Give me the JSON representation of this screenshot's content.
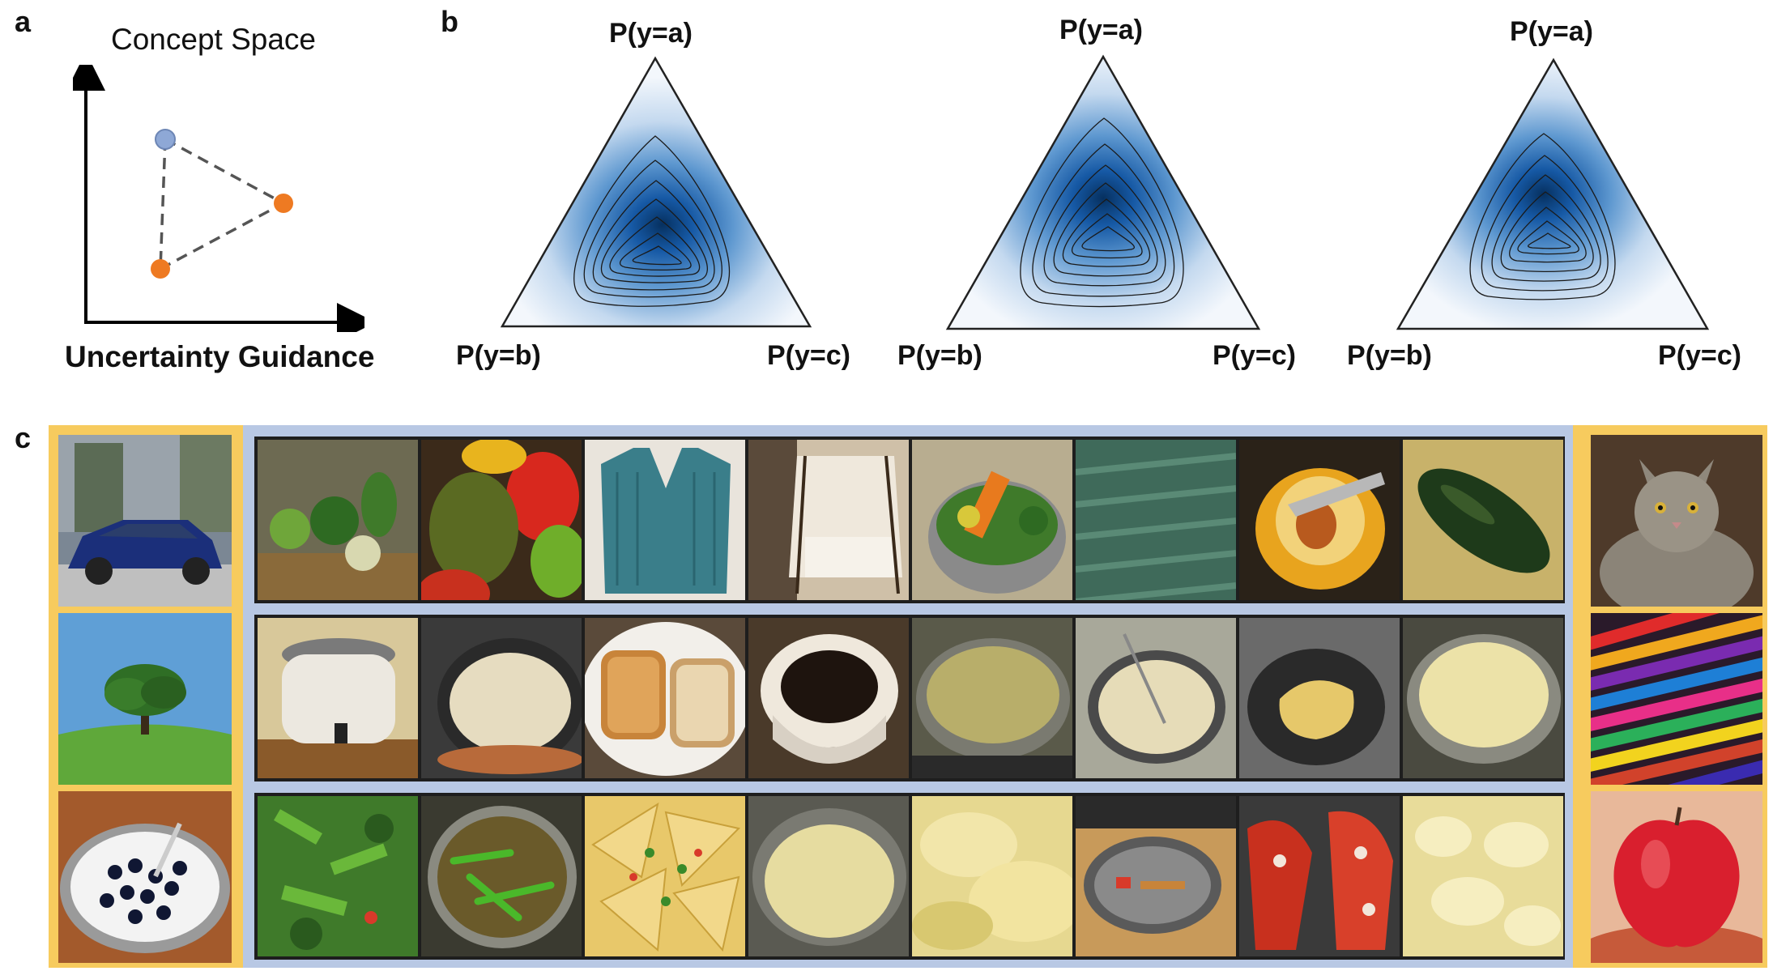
{
  "panel_a": {
    "letter": "a",
    "title": "Concept Space",
    "x_axis_label": "Uncertainty Guidance"
  },
  "panel_b": {
    "letter": "b",
    "simplices": [
      {
        "top": "P(y=a)",
        "left": "P(y=b)",
        "right": "P(y=c)"
      },
      {
        "top": "P(y=a)",
        "left": "P(y=b)",
        "right": "P(y=c)"
      },
      {
        "top": "P(y=a)",
        "left": "P(y=b)",
        "right": "P(y=c)"
      }
    ]
  },
  "panel_c": {
    "letter": "c",
    "left_concepts": [
      "car-photo",
      "tree-photo",
      "yogurt-blueberries-photo"
    ],
    "right_concepts": [
      "cat-photo",
      "crayons-photo",
      "apple-photo"
    ],
    "rows": [
      [
        "vegetables-kitchen",
        "peppers",
        "knit-sweater",
        "canopy-bed",
        "vegetable-pot",
        "knit-fabric",
        "cut-squash",
        "zucchini"
      ],
      [
        "slow-cooker",
        "sauce-pan",
        "toast-slices",
        "coffee-cup",
        "soup-pot",
        "stirred-pan",
        "omelette-pan",
        "cream-pot"
      ],
      [
        "stir-fry",
        "green-beans-stew",
        "nachos",
        "rice-pot",
        "mashed-potato",
        "empty-pan",
        "crab-claws",
        "mashed-potato-closeup"
      ]
    ]
  },
  "colors": {
    "concept_blue": "#8ea8d6",
    "concept_orange": "#ee7a22",
    "density_dark": "#0a3d7a",
    "frame_yellow": "#f7cb5e",
    "frame_blue": "#b8c8e4"
  }
}
